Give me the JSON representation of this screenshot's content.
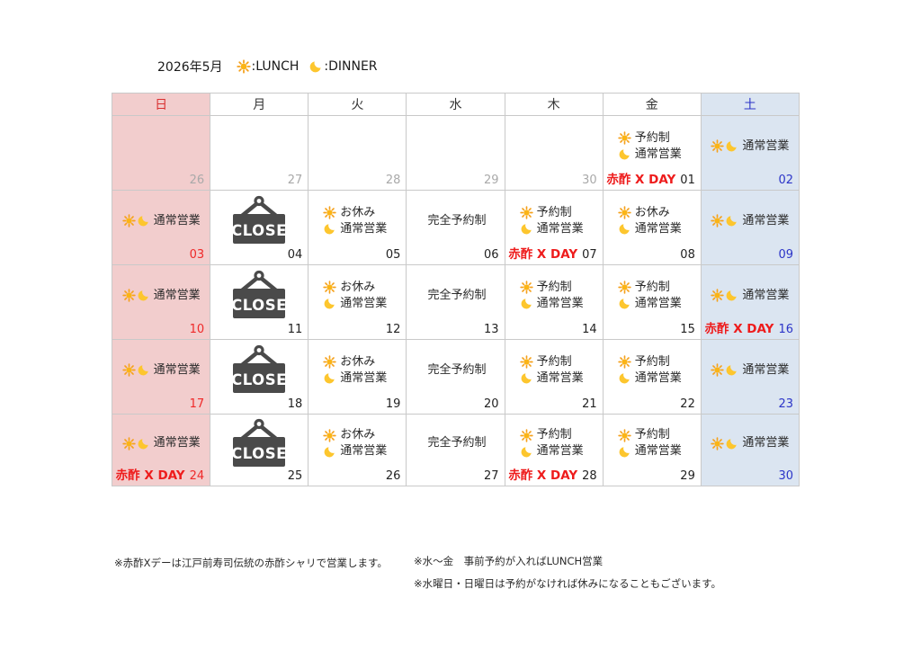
{
  "page": {
    "title_month": "2026年5月",
    "legend": {
      "lunch_label": ":LUNCH",
      "dinner_label": ":DINNER"
    }
  },
  "colors": {
    "sunday_bg": "#f2cdcd",
    "saturday_bg": "#dbe5f1",
    "sunday_text": "#ef2929",
    "saturday_text": "#2c35c8",
    "akasu_red": "#ee1c1c",
    "muted_date": "#a9a9a9",
    "close_sign": "#4a4a4a",
    "sun_icon": "#f5a11c",
    "moon_icon": "#fdc62e",
    "grid_border": "#c9c9c9"
  },
  "calendar": {
    "weekdays": [
      "日",
      "月",
      "火",
      "水",
      "木",
      "金",
      "土"
    ],
    "close_label": "CLOSE",
    "weeks": [
      [
        {
          "date": "26",
          "muted": true,
          "lines": []
        },
        {
          "date": "27",
          "muted": true,
          "lines": []
        },
        {
          "date": "28",
          "muted": true,
          "lines": []
        },
        {
          "date": "29",
          "muted": true,
          "lines": []
        },
        {
          "date": "30",
          "muted": true,
          "lines": []
        },
        {
          "date": "01",
          "lines": [
            {
              "icons": [
                "sun"
              ],
              "text": "予約制"
            },
            {
              "icons": [
                "moon"
              ],
              "text": "通常営業"
            }
          ],
          "special": "赤酢 X DAY"
        },
        {
          "date": "02",
          "center": true,
          "lines": [
            {
              "icons": [
                "sun",
                "moon"
              ],
              "text": "通常営業"
            }
          ]
        }
      ],
      [
        {
          "date": "03",
          "center": true,
          "lines": [
            {
              "icons": [
                "sun",
                "moon"
              ],
              "text": "通常営業"
            }
          ]
        },
        {
          "date": "04",
          "close": true
        },
        {
          "date": "05",
          "lines": [
            {
              "icons": [
                "sun"
              ],
              "text": "お休み"
            },
            {
              "icons": [
                "moon"
              ],
              "text": "通常営業"
            }
          ]
        },
        {
          "date": "06",
          "center": true,
          "lines": [
            {
              "icons": [],
              "text": "完全予約制"
            }
          ]
        },
        {
          "date": "07",
          "lines": [
            {
              "icons": [
                "sun"
              ],
              "text": "予約制"
            },
            {
              "icons": [
                "moon"
              ],
              "text": "通常営業"
            }
          ],
          "special": "赤酢 X DAY"
        },
        {
          "date": "08",
          "lines": [
            {
              "icons": [
                "sun"
              ],
              "text": "お休み"
            },
            {
              "icons": [
                "moon"
              ],
              "text": "通常営業"
            }
          ]
        },
        {
          "date": "09",
          "center": true,
          "lines": [
            {
              "icons": [
                "sun",
                "moon"
              ],
              "text": "通常営業"
            }
          ]
        }
      ],
      [
        {
          "date": "10",
          "center": true,
          "lines": [
            {
              "icons": [
                "sun",
                "moon"
              ],
              "text": "通常営業"
            }
          ]
        },
        {
          "date": "11",
          "close": true
        },
        {
          "date": "12",
          "lines": [
            {
              "icons": [
                "sun"
              ],
              "text": "お休み"
            },
            {
              "icons": [
                "moon"
              ],
              "text": "通常営業"
            }
          ]
        },
        {
          "date": "13",
          "center": true,
          "lines": [
            {
              "icons": [],
              "text": "完全予約制"
            }
          ]
        },
        {
          "date": "14",
          "lines": [
            {
              "icons": [
                "sun"
              ],
              "text": "予約制"
            },
            {
              "icons": [
                "moon"
              ],
              "text": "通常営業"
            }
          ]
        },
        {
          "date": "15",
          "lines": [
            {
              "icons": [
                "sun"
              ],
              "text": "予約制"
            },
            {
              "icons": [
                "moon"
              ],
              "text": "通常営業"
            }
          ]
        },
        {
          "date": "16",
          "center": true,
          "lines": [
            {
              "icons": [
                "sun",
                "moon"
              ],
              "text": "通常営業"
            }
          ],
          "special": "赤酢 X DAY"
        }
      ],
      [
        {
          "date": "17",
          "center": true,
          "lines": [
            {
              "icons": [
                "sun",
                "moon"
              ],
              "text": "通常営業"
            }
          ]
        },
        {
          "date": "18",
          "close": true
        },
        {
          "date": "19",
          "lines": [
            {
              "icons": [
                "sun"
              ],
              "text": "お休み"
            },
            {
              "icons": [
                "moon"
              ],
              "text": "通常営業"
            }
          ]
        },
        {
          "date": "20",
          "center": true,
          "lines": [
            {
              "icons": [],
              "text": "完全予約制"
            }
          ]
        },
        {
          "date": "21",
          "lines": [
            {
              "icons": [
                "sun"
              ],
              "text": "予約制"
            },
            {
              "icons": [
                "moon"
              ],
              "text": "通常営業"
            }
          ]
        },
        {
          "date": "22",
          "lines": [
            {
              "icons": [
                "sun"
              ],
              "text": "予約制"
            },
            {
              "icons": [
                "moon"
              ],
              "text": "通常営業"
            }
          ]
        },
        {
          "date": "23",
          "center": true,
          "lines": [
            {
              "icons": [
                "sun",
                "moon"
              ],
              "text": "通常営業"
            }
          ]
        }
      ],
      [
        {
          "date": "24",
          "center": true,
          "lines": [
            {
              "icons": [
                "sun",
                "moon"
              ],
              "text": "通常営業"
            }
          ],
          "special": "赤酢 X DAY"
        },
        {
          "date": "25",
          "close": true
        },
        {
          "date": "26",
          "lines": [
            {
              "icons": [
                "sun"
              ],
              "text": "お休み"
            },
            {
              "icons": [
                "moon"
              ],
              "text": "通常営業"
            }
          ]
        },
        {
          "date": "27",
          "center": true,
          "lines": [
            {
              "icons": [],
              "text": "完全予約制"
            }
          ]
        },
        {
          "date": "28",
          "lines": [
            {
              "icons": [
                "sun"
              ],
              "text": "予約制"
            },
            {
              "icons": [
                "moon"
              ],
              "text": "通常営業"
            }
          ],
          "special": "赤酢 X DAY"
        },
        {
          "date": "29",
          "lines": [
            {
              "icons": [
                "sun"
              ],
              "text": "予約制"
            },
            {
              "icons": [
                "moon"
              ],
              "text": "通常営業"
            }
          ]
        },
        {
          "date": "30",
          "center": true,
          "lines": [
            {
              "icons": [
                "sun",
                "moon"
              ],
              "text": "通常営業"
            }
          ]
        }
      ]
    ]
  },
  "notes": {
    "note_akasu": "※赤酢Xデーは江戸前寿司伝統の赤酢シャリで営業します。",
    "note_lunch": "※水～金　事前予約が入ればLUNCH営業",
    "note_holiday": "※水曜日・日曜日は予約がなければ休みになることもございます。"
  }
}
